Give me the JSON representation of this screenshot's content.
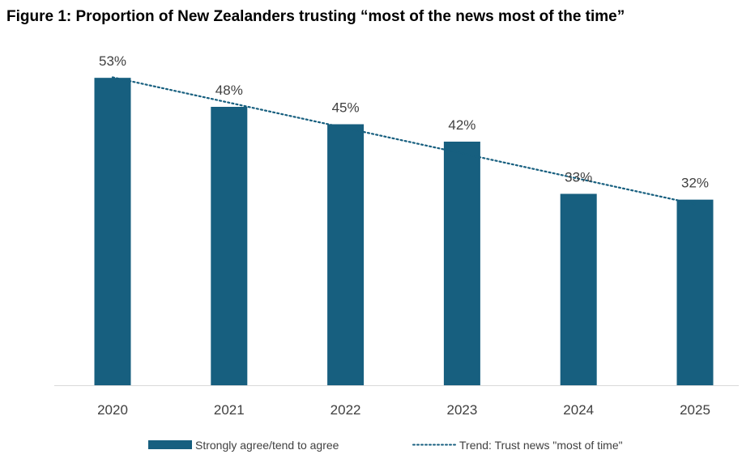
{
  "title": "Figure 1: Proportion of New Zealanders trusting “most of the news most of the time”",
  "chart_data": {
    "type": "bar",
    "categories": [
      "2020",
      "2021",
      "2022",
      "2023",
      "2024",
      "2025"
    ],
    "series": [
      {
        "name": "Strongly agree/tend to agree",
        "values": [
          53,
          48,
          45,
          42,
          33,
          32
        ]
      }
    ],
    "data_labels": [
      "53%",
      "48%",
      "45%",
      "42%",
      "33%",
      "32%"
    ],
    "trend": {
      "name": "Trend: Trust news \"most of time\"",
      "style": "dotted"
    },
    "ylim": [
      0,
      60
    ],
    "grid": false,
    "legend_position": "bottom",
    "colors": {
      "bar": "#175f7f",
      "trend": "#175f7f",
      "axis": "#d9d9d9"
    }
  }
}
